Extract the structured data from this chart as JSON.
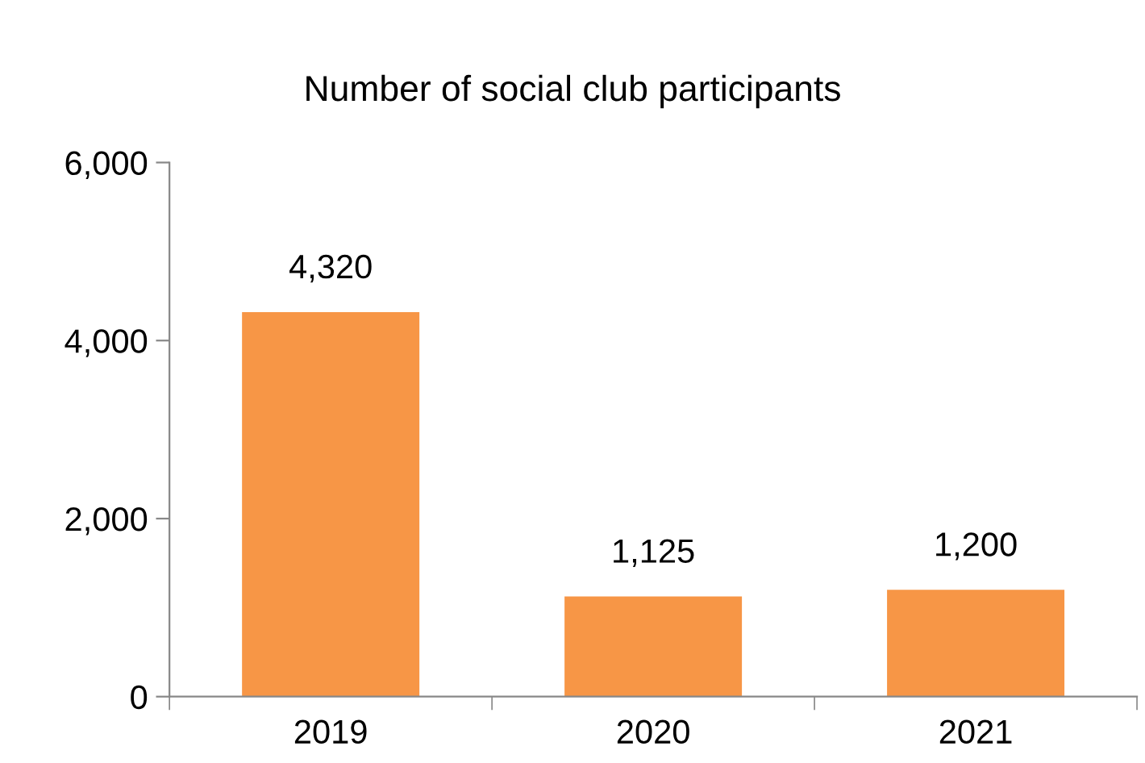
{
  "chart_data": {
    "type": "bar",
    "title": "Number of social club participants",
    "categories": [
      "2019",
      "2020",
      "2021"
    ],
    "values": [
      4320,
      1125,
      1200
    ],
    "value_labels": [
      "4,320",
      "1,125",
      "1,200"
    ],
    "color": "#f79646",
    "ylim": [
      0,
      6000
    ],
    "yticks": [
      0,
      {
        "value": 2000,
        "label": "2,000"
      },
      {
        "value": 4000,
        "label": "4,000"
      },
      {
        "value": 6000,
        "label": "6,000"
      }
    ],
    "grid": false
  }
}
